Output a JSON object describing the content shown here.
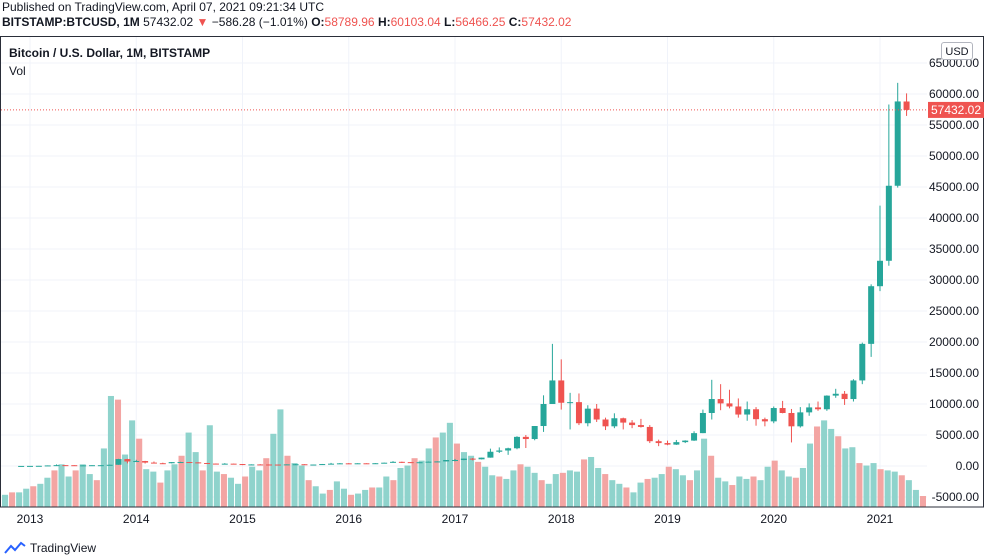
{
  "header": {
    "published": "Published on TradingView.com, April 07, 2021 09:21:34 UTC",
    "symbol": "BITSTAMP:BTCUSD, 1M",
    "last": "57432.02",
    "change_arrow": "▼",
    "change": "−586.28 (−1.01%)",
    "o_label": "O:",
    "o_value": "58789.96",
    "h_label": "H:",
    "h_value": "60103.04",
    "l_label": "L:",
    "l_value": "56466.25",
    "c_label": "C:",
    "c_value": "57432.02"
  },
  "legend": {
    "title": "Bitcoin / U.S. Dollar, 1M, BITSTAMP",
    "vol": "Vol"
  },
  "price_scale": {
    "currency": "USD",
    "last_price_label": "57432.02"
  },
  "brand": {
    "name": "TradingView",
    "icon": "tradingview-logo-icon"
  },
  "colors": {
    "up": "#26a69a",
    "down": "#ef5350",
    "vol_up": "#8fd3cc",
    "vol_down": "#f3a5a3",
    "grid": "#f0f3fa"
  },
  "chart_data": {
    "type": "candlestick",
    "title": "Bitcoin / U.S. Dollar, 1M, BITSTAMP",
    "x_ticks": [
      "2013",
      "2014",
      "2015",
      "2016",
      "2017",
      "2018",
      "2019",
      "2020",
      "2021"
    ],
    "y_ticks": [
      "65000.00",
      "60000.00",
      "55000.00",
      "50000.00",
      "45000.00",
      "40000.00",
      "35000.00",
      "30000.00",
      "25000.00",
      "20000.00",
      "15000.00",
      "10000.00",
      "5000.00",
      "0.00",
      "-5000.00"
    ],
    "ylim": [
      -6000,
      66500
    ],
    "grid": true,
    "last_price": 57432.02,
    "candles": [
      {
        "t": "2016-09",
        "o": 575,
        "h": 610,
        "l": 570,
        "c": 610
      },
      {
        "t": "2016-10",
        "o": 610,
        "h": 720,
        "l": 600,
        "c": 700
      },
      {
        "t": "2016-11",
        "o": 700,
        "h": 750,
        "l": 690,
        "c": 740
      },
      {
        "t": "2016-12",
        "o": 740,
        "h": 970,
        "l": 740,
        "c": 965
      },
      {
        "t": "2017-01",
        "o": 965,
        "h": 1150,
        "l": 750,
        "c": 970
      },
      {
        "t": "2017-02",
        "o": 970,
        "h": 1200,
        "l": 930,
        "c": 1190
      },
      {
        "t": "2017-03",
        "o": 1190,
        "h": 1300,
        "l": 900,
        "c": 1080
      },
      {
        "t": "2017-04",
        "o": 1080,
        "h": 1350,
        "l": 1060,
        "c": 1350
      },
      {
        "t": "2017-05",
        "o": 1350,
        "h": 2800,
        "l": 1340,
        "c": 2300
      },
      {
        "t": "2017-06",
        "o": 2300,
        "h": 3000,
        "l": 2100,
        "c": 2500
      },
      {
        "t": "2017-07",
        "o": 2500,
        "h": 2950,
        "l": 1800,
        "c": 2860
      },
      {
        "t": "2017-08",
        "o": 2860,
        "h": 4800,
        "l": 2700,
        "c": 4700
      },
      {
        "t": "2017-09",
        "o": 4700,
        "h": 5000,
        "l": 2900,
        "c": 4350
      },
      {
        "t": "2017-10",
        "o": 4350,
        "h": 6450,
        "l": 4150,
        "c": 6450
      },
      {
        "t": "2017-11",
        "o": 6450,
        "h": 11400,
        "l": 5500,
        "c": 10000
      },
      {
        "t": "2017-12",
        "o": 10000,
        "h": 19700,
        "l": 10000,
        "c": 13800
      },
      {
        "t": "2018-01",
        "o": 13800,
        "h": 17200,
        "l": 9100,
        "c": 10200
      },
      {
        "t": "2018-02",
        "o": 10200,
        "h": 11800,
        "l": 5900,
        "c": 10300
      },
      {
        "t": "2018-03",
        "o": 10300,
        "h": 11700,
        "l": 6600,
        "c": 6900
      },
      {
        "t": "2018-04",
        "o": 6900,
        "h": 9800,
        "l": 6400,
        "c": 9250
      },
      {
        "t": "2018-05",
        "o": 9250,
        "h": 10000,
        "l": 7100,
        "c": 7500
      },
      {
        "t": "2018-06",
        "o": 7500,
        "h": 7800,
        "l": 5800,
        "c": 6400
      },
      {
        "t": "2018-07",
        "o": 6400,
        "h": 8500,
        "l": 6100,
        "c": 7700
      },
      {
        "t": "2018-08",
        "o": 7700,
        "h": 7800,
        "l": 5900,
        "c": 7000
      },
      {
        "t": "2018-09",
        "o": 7000,
        "h": 7400,
        "l": 6100,
        "c": 6600
      },
      {
        "t": "2018-10",
        "o": 6600,
        "h": 7600,
        "l": 6200,
        "c": 6300
      },
      {
        "t": "2018-11",
        "o": 6300,
        "h": 6600,
        "l": 3700,
        "c": 4000
      },
      {
        "t": "2018-12",
        "o": 4000,
        "h": 4250,
        "l": 3200,
        "c": 3700
      },
      {
        "t": "2019-01",
        "o": 3700,
        "h": 4100,
        "l": 3350,
        "c": 3450
      },
      {
        "t": "2019-02",
        "o": 3450,
        "h": 4200,
        "l": 3400,
        "c": 3850
      },
      {
        "t": "2019-03",
        "o": 3850,
        "h": 4150,
        "l": 3700,
        "c": 4100
      },
      {
        "t": "2019-04",
        "o": 4100,
        "h": 5600,
        "l": 4050,
        "c": 5300
      },
      {
        "t": "2019-05",
        "o": 5300,
        "h": 9100,
        "l": 5300,
        "c": 8550
      },
      {
        "t": "2019-06",
        "o": 8550,
        "h": 13900,
        "l": 7500,
        "c": 10800
      },
      {
        "t": "2019-07",
        "o": 10800,
        "h": 13200,
        "l": 9000,
        "c": 10100
      },
      {
        "t": "2019-08",
        "o": 10100,
        "h": 12300,
        "l": 9300,
        "c": 9600
      },
      {
        "t": "2019-09",
        "o": 9600,
        "h": 10900,
        "l": 7800,
        "c": 8300
      },
      {
        "t": "2019-10",
        "o": 8300,
        "h": 10400,
        "l": 7300,
        "c": 9150
      },
      {
        "t": "2019-11",
        "o": 9150,
        "h": 9500,
        "l": 6500,
        "c": 7550
      },
      {
        "t": "2019-12",
        "o": 7550,
        "h": 7800,
        "l": 6400,
        "c": 7200
      },
      {
        "t": "2020-01",
        "o": 7200,
        "h": 9600,
        "l": 6900,
        "c": 9350
      },
      {
        "t": "2020-02",
        "o": 9350,
        "h": 10500,
        "l": 8500,
        "c": 8550
      },
      {
        "t": "2020-03",
        "o": 8550,
        "h": 9200,
        "l": 3800,
        "c": 6400
      },
      {
        "t": "2020-04",
        "o": 6400,
        "h": 9500,
        "l": 6200,
        "c": 8650
      },
      {
        "t": "2020-05",
        "o": 8650,
        "h": 10100,
        "l": 8100,
        "c": 9450
      },
      {
        "t": "2020-06",
        "o": 9450,
        "h": 10400,
        "l": 8900,
        "c": 9150
      },
      {
        "t": "2020-07",
        "o": 9150,
        "h": 11400,
        "l": 8900,
        "c": 11350
      },
      {
        "t": "2020-08",
        "o": 11350,
        "h": 12450,
        "l": 11000,
        "c": 11650
      },
      {
        "t": "2020-09",
        "o": 11650,
        "h": 12100,
        "l": 9850,
        "c": 10800
      },
      {
        "t": "2020-10",
        "o": 10800,
        "h": 14000,
        "l": 10400,
        "c": 13800
      },
      {
        "t": "2020-11",
        "o": 13800,
        "h": 19900,
        "l": 13200,
        "c": 19700
      },
      {
        "t": "2020-12",
        "o": 19700,
        "h": 29300,
        "l": 17600,
        "c": 29000
      },
      {
        "t": "2021-01",
        "o": 29000,
        "h": 42000,
        "l": 28200,
        "c": 33100
      },
      {
        "t": "2021-02",
        "o": 33100,
        "h": 58300,
        "l": 32300,
        "c": 45200
      },
      {
        "t": "2021-03",
        "o": 45200,
        "h": 61800,
        "l": 44900,
        "c": 58800
      },
      {
        "t": "2021-04",
        "o": 58789.96,
        "h": 60103.04,
        "l": 56466.25,
        "c": 57432.02
      }
    ],
    "early_candles_note": "",
    "early_candles": [
      {
        "t": "2012-12",
        "o": 13,
        "h": 14,
        "l": 12,
        "c": 13
      },
      {
        "t": "2013-01",
        "o": 13,
        "h": 20,
        "l": 13,
        "c": 20
      },
      {
        "t": "2013-02",
        "o": 20,
        "h": 33,
        "l": 19,
        "c": 33
      },
      {
        "t": "2013-03",
        "o": 33,
        "h": 95,
        "l": 33,
        "c": 93
      },
      {
        "t": "2013-04",
        "o": 93,
        "h": 260,
        "l": 50,
        "c": 139
      },
      {
        "t": "2013-05",
        "o": 139,
        "h": 140,
        "l": 110,
        "c": 129
      },
      {
        "t": "2013-06",
        "o": 129,
        "h": 130,
        "l": 88,
        "c": 97
      },
      {
        "t": "2013-07",
        "o": 97,
        "h": 110,
        "l": 65,
        "c": 106
      },
      {
        "t": "2013-08",
        "o": 106,
        "h": 130,
        "l": 101,
        "c": 130
      },
      {
        "t": "2013-09",
        "o": 130,
        "h": 140,
        "l": 120,
        "c": 132
      },
      {
        "t": "2013-10",
        "o": 132,
        "h": 210,
        "l": 107,
        "c": 198
      },
      {
        "t": "2013-11",
        "o": 198,
        "h": 1160,
        "l": 195,
        "c": 1120
      },
      {
        "t": "2013-12",
        "o": 1120,
        "h": 1160,
        "l": 420,
        "c": 731
      },
      {
        "t": "2014-01",
        "o": 731,
        "h": 1000,
        "l": 720,
        "c": 800
      },
      {
        "t": "2014-02",
        "o": 800,
        "h": 830,
        "l": 400,
        "c": 550
      },
      {
        "t": "2014-03",
        "o": 550,
        "h": 720,
        "l": 430,
        "c": 450
      },
      {
        "t": "2014-04",
        "o": 450,
        "h": 530,
        "l": 340,
        "c": 445
      },
      {
        "t": "2014-05",
        "o": 445,
        "h": 630,
        "l": 420,
        "c": 630
      },
      {
        "t": "2014-06",
        "o": 630,
        "h": 680,
        "l": 550,
        "c": 640
      },
      {
        "t": "2014-07",
        "o": 640,
        "h": 650,
        "l": 570,
        "c": 585
      },
      {
        "t": "2014-08",
        "o": 585,
        "h": 600,
        "l": 450,
        "c": 480
      },
      {
        "t": "2014-09",
        "o": 480,
        "h": 500,
        "l": 350,
        "c": 390
      },
      {
        "t": "2014-10",
        "o": 390,
        "h": 410,
        "l": 280,
        "c": 340
      },
      {
        "t": "2014-11",
        "o": 340,
        "h": 460,
        "l": 310,
        "c": 378
      },
      {
        "t": "2014-12",
        "o": 378,
        "h": 385,
        "l": 300,
        "c": 317
      },
      {
        "t": "2015-01",
        "o": 317,
        "h": 320,
        "l": 150,
        "c": 218
      },
      {
        "t": "2015-02",
        "o": 218,
        "h": 270,
        "l": 210,
        "c": 255
      },
      {
        "t": "2015-03",
        "o": 255,
        "h": 300,
        "l": 235,
        "c": 244
      },
      {
        "t": "2015-04",
        "o": 244,
        "h": 260,
        "l": 210,
        "c": 236
      },
      {
        "t": "2015-05",
        "o": 236,
        "h": 245,
        "l": 225,
        "c": 230
      },
      {
        "t": "2015-06",
        "o": 230,
        "h": 265,
        "l": 220,
        "c": 263
      },
      {
        "t": "2015-07",
        "o": 263,
        "h": 315,
        "l": 255,
        "c": 284
      },
      {
        "t": "2015-08",
        "o": 284,
        "h": 285,
        "l": 200,
        "c": 230
      },
      {
        "t": "2015-09",
        "o": 230,
        "h": 245,
        "l": 225,
        "c": 236
      },
      {
        "t": "2015-10",
        "o": 236,
        "h": 330,
        "l": 235,
        "c": 313
      },
      {
        "t": "2015-11",
        "o": 313,
        "h": 500,
        "l": 300,
        "c": 377
      },
      {
        "t": "2015-12",
        "o": 377,
        "h": 470,
        "l": 350,
        "c": 430
      },
      {
        "t": "2016-01",
        "o": 430,
        "h": 465,
        "l": 350,
        "c": 369
      },
      {
        "t": "2016-02",
        "o": 369,
        "h": 445,
        "l": 365,
        "c": 436
      },
      {
        "t": "2016-03",
        "o": 436,
        "h": 440,
        "l": 400,
        "c": 416
      },
      {
        "t": "2016-04",
        "o": 416,
        "h": 470,
        "l": 410,
        "c": 448
      },
      {
        "t": "2016-05",
        "o": 448,
        "h": 550,
        "l": 440,
        "c": 531
      },
      {
        "t": "2016-06",
        "o": 531,
        "h": 780,
        "l": 530,
        "c": 673
      },
      {
        "t": "2016-07",
        "o": 673,
        "h": 700,
        "l": 480,
        "c": 624
      },
      {
        "t": "2016-08",
        "o": 624,
        "h": 625,
        "l": 470,
        "c": 575
      }
    ],
    "volume_relative": [
      0.1,
      0.12,
      0.12,
      0.15,
      0.17,
      0.19,
      0.24,
      0.3,
      0.35,
      0.25,
      0.3,
      0.35,
      0.27,
      0.22,
      0.48,
      0.91,
      0.88,
      0.43,
      0.71,
      0.56,
      0.31,
      0.29,
      0.2,
      0.3,
      0.35,
      0.42,
      0.61,
      0.45,
      0.3,
      0.67,
      0.29,
      0.27,
      0.24,
      0.19,
      0.25,
      0.33,
      0.3,
      0.4,
      0.6,
      0.8,
      0.42,
      0.36,
      0.34,
      0.22,
      0.17,
      0.11,
      0.14,
      0.21,
      0.15,
      0.1,
      0.11,
      0.14,
      0.16,
      0.16,
      0.25,
      0.22,
      0.32,
      0.34,
      0.4,
      0.38,
      0.48,
      0.57,
      0.61,
      0.69,
      0.52,
      0.45,
      0.42,
      0.37,
      0.33,
      0.26,
      0.25,
      0.23,
      0.3,
      0.35,
      0.33,
      0.28,
      0.22,
      0.19,
      0.27,
      0.28,
      0.3,
      0.29,
      0.39,
      0.41,
      0.32,
      0.27,
      0.22,
      0.19,
      0.16,
      0.12,
      0.2,
      0.23,
      0.24,
      0.27,
      0.33,
      0.31,
      0.26,
      0.22,
      0.3,
      0.56,
      0.42,
      0.24,
      0.21,
      0.18,
      0.25,
      0.23,
      0.25,
      0.22,
      0.33,
      0.38,
      0.3,
      0.25,
      0.24,
      0.32,
      0.52,
      0.66,
      0.71,
      0.64,
      0.58,
      0.48,
      0.49,
      0.36,
      0.34,
      0.36,
      0.31,
      0.3,
      0.29,
      0.26,
      0.22,
      0.14,
      0.09
    ]
  }
}
